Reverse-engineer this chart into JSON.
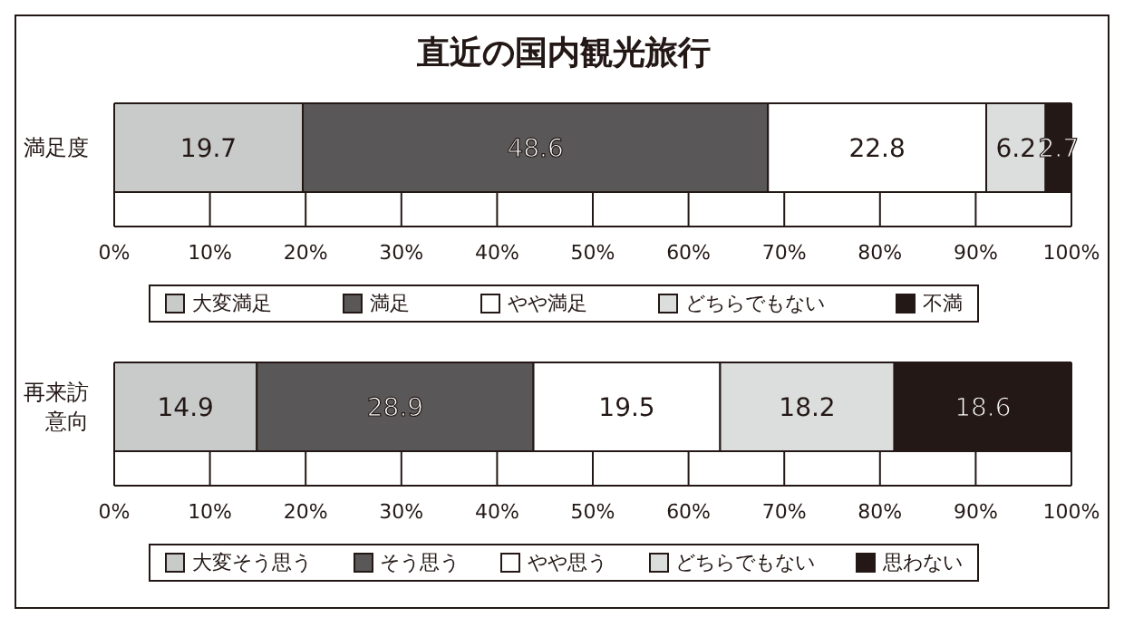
{
  "chart_data": [
    {
      "type": "bar",
      "title": "直近の国内観光旅行",
      "orientation": "horizontal",
      "stacked": true,
      "categories": [
        "満足度"
      ],
      "xlim": [
        0,
        100
      ],
      "xticks": [
        {
          "value": 0,
          "label": "0%"
        },
        {
          "value": 10,
          "label": "10%"
        },
        {
          "value": 20,
          "label": "20%"
        },
        {
          "value": 30,
          "label": "30%"
        },
        {
          "value": 40,
          "label": "40%"
        },
        {
          "value": 50,
          "label": "50%"
        },
        {
          "value": 60,
          "label": "60%"
        },
        {
          "value": 70,
          "label": "70%"
        },
        {
          "value": 80,
          "label": "80%"
        },
        {
          "value": 90,
          "label": "90%"
        },
        {
          "value": 100,
          "label": "100%"
        }
      ],
      "grid": "x",
      "legend": "bottom",
      "data_labels": true,
      "series": [
        {
          "name": "大変満足",
          "color": "#c9caca",
          "values": [
            19.7
          ]
        },
        {
          "name": "満足",
          "color": "#595757",
          "values": [
            48.6
          ]
        },
        {
          "name": "やや満足",
          "color": "#ffffff",
          "values": [
            22.8
          ]
        },
        {
          "name": "どちらでもない",
          "color": "#dcdddd",
          "values": [
            6.2
          ]
        },
        {
          "name": "不満",
          "color": "#231815",
          "values": [
            2.7
          ]
        }
      ]
    },
    {
      "type": "bar",
      "orientation": "horizontal",
      "stacked": true,
      "categories": [
        "再来訪意向"
      ],
      "xlim": [
        0,
        100
      ],
      "xticks": [
        {
          "value": 0,
          "label": "0%"
        },
        {
          "value": 10,
          "label": "10%"
        },
        {
          "value": 20,
          "label": "20%"
        },
        {
          "value": 30,
          "label": "30%"
        },
        {
          "value": 40,
          "label": "40%"
        },
        {
          "value": 50,
          "label": "50%"
        },
        {
          "value": 60,
          "label": "60%"
        },
        {
          "value": 70,
          "label": "70%"
        },
        {
          "value": 80,
          "label": "80%"
        },
        {
          "value": 90,
          "label": "90%"
        },
        {
          "value": 100,
          "label": "100%"
        }
      ],
      "grid": "x",
      "legend": "bottom",
      "data_labels": true,
      "series": [
        {
          "name": "大変そう思う",
          "color": "#c9caca",
          "values": [
            14.9
          ]
        },
        {
          "name": "そう思う",
          "color": "#595757",
          "values": [
            28.9
          ]
        },
        {
          "name": "やや思う",
          "color": "#ffffff",
          "values": [
            19.5
          ]
        },
        {
          "name": "どちらでもない",
          "color": "#dcdddd",
          "values": [
            18.2
          ]
        },
        {
          "name": "思わない",
          "color": "#231815",
          "values": [
            18.6
          ]
        }
      ]
    }
  ]
}
